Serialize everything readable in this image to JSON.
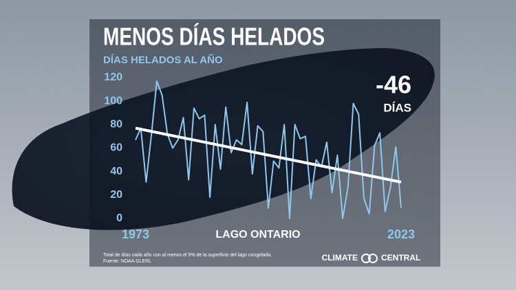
{
  "chart_data": {
    "type": "line",
    "title": "MENOS DÍAS HELADOS",
    "subtitle": "DÍAS HELADOS AL AÑO",
    "x": [
      1973,
      1974,
      1975,
      1976,
      1977,
      1978,
      1979,
      1980,
      1981,
      1982,
      1983,
      1984,
      1985,
      1986,
      1987,
      1988,
      1989,
      1990,
      1991,
      1992,
      1993,
      1994,
      1995,
      1996,
      1997,
      1998,
      1999,
      2000,
      2001,
      2002,
      2003,
      2004,
      2005,
      2006,
      2007,
      2008,
      2009,
      2010,
      2011,
      2012,
      2013,
      2014,
      2015,
      2016,
      2017,
      2018,
      2019,
      2020,
      2021,
      2022,
      2023
    ],
    "series": [
      {
        "color": "#8fc8ec",
        "values": [
          67,
          77,
          31,
          72,
          117,
          105,
          72,
          60,
          67,
          86,
          33,
          94,
          85,
          88,
          18,
          80,
          42,
          95,
          56,
          67,
          63,
          99,
          38,
          79,
          74,
          9,
          49,
          43,
          80,
          0,
          80,
          68,
          70,
          17,
          50,
          44,
          65,
          22,
          54,
          0,
          27,
          98,
          89,
          17,
          4,
          62,
          73,
          6,
          27,
          61,
          9
        ]
      }
    ],
    "trendline": {
      "x": [
        1973,
        2023
      ],
      "values": [
        77,
        31
      ],
      "color": "#ffffff"
    },
    "xlim": [
      1973,
      2023
    ],
    "xticks": [
      1973,
      2023
    ],
    "ylim": [
      0,
      120
    ],
    "yticks": [
      0,
      20,
      40,
      60,
      80,
      100,
      120
    ],
    "annotation": {
      "value": "-46",
      "unit": "DÍAS"
    },
    "location": "LAGO ONTARIO",
    "footnote": "Total de días cada año con al menos el 5% de la superficie del lago congelada.",
    "source": "Fuente: NOAA GLERL",
    "branding": {
      "left": "CLIMATE",
      "right": "CENTRAL"
    }
  }
}
